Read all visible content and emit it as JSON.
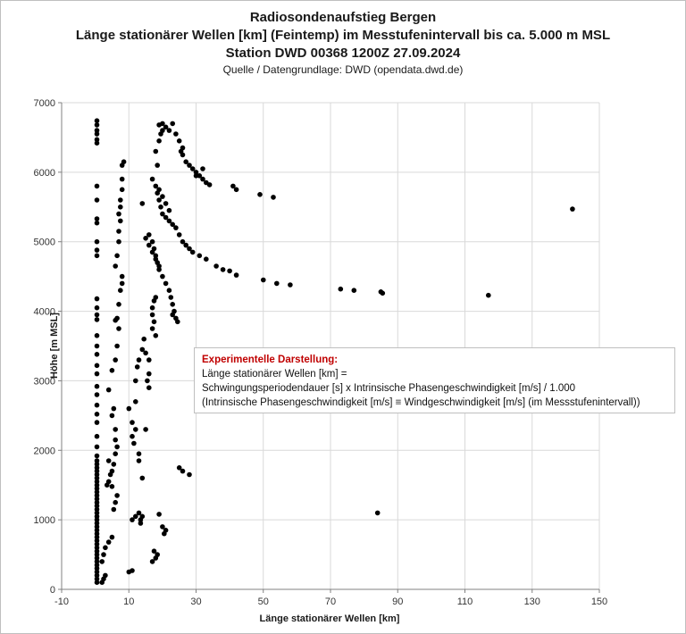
{
  "chart_data": {
    "type": "scatter",
    "title": "Radiosondenaufstieg Bergen",
    "subtitle_lines": [
      "Länge stationärer Wellen [km] (Feintemp) im Messtufenintervall bis ca. 5.000 m MSL",
      "Station DWD 00368 1200Z 27.09.2024"
    ],
    "source": "Quelle / Datengrundlage: DWD (opendata.dwd.de)",
    "xlabel": "Länge stationärer Wellen [km]",
    "ylabel": "Höhe [m MSL]",
    "xlim": [
      -10,
      150
    ],
    "ylim": [
      0,
      7000
    ],
    "xticks": [
      "-10",
      "10",
      "30",
      "50",
      "70",
      "90",
      "110",
      "130",
      "150"
    ],
    "yticks": [
      "0",
      "1000",
      "2000",
      "3000",
      "4000",
      "5000",
      "6000",
      "7000"
    ],
    "grid": true,
    "legend": false,
    "marker_color": "#000000",
    "annotation": {
      "title": "Experimentelle Darstellung:",
      "lines": [
        "Länge stationärer Wellen [km] =",
        "Schwingungsperiodendauer [s] x Intrinsische Phasengeschwindigkeit [m/s]  / 1.000",
        "(Intrinsische Phasengeschwindigkeit [m/s] ≡ Windgeschwindigkeit [m/s] (im Messstufenintervall))"
      ],
      "title_color": "#c00000"
    },
    "points": [
      [
        0.5,
        6740
      ],
      [
        0.5,
        6680
      ],
      [
        0.5,
        6600
      ],
      [
        0.5,
        6550
      ],
      [
        0.5,
        6470
      ],
      [
        0.5,
        6420
      ],
      [
        0.5,
        5800
      ],
      [
        0.5,
        5600
      ],
      [
        0.5,
        5330
      ],
      [
        0.5,
        5270
      ],
      [
        0.5,
        5000
      ],
      [
        0.5,
        4880
      ],
      [
        0.5,
        4800
      ],
      [
        0.5,
        4180
      ],
      [
        0.5,
        4050
      ],
      [
        0.5,
        3950
      ],
      [
        0.5,
        3880
      ],
      [
        0.5,
        3650
      ],
      [
        0.5,
        3500
      ],
      [
        0.5,
        3380
      ],
      [
        0.5,
        3220
      ],
      [
        0.5,
        3100
      ],
      [
        0.5,
        2920
      ],
      [
        0.5,
        2800
      ],
      [
        0.5,
        2650
      ],
      [
        0.5,
        2520
      ],
      [
        0.5,
        2400
      ],
      [
        0.5,
        2200
      ],
      [
        0.5,
        2050
      ],
      [
        0.5,
        1920
      ],
      [
        0.5,
        1850
      ],
      [
        0.5,
        1800
      ],
      [
        0.5,
        1750
      ],
      [
        0.5,
        1700
      ],
      [
        0.5,
        1650
      ],
      [
        0.5,
        1600
      ],
      [
        0.5,
        1550
      ],
      [
        0.5,
        1500
      ],
      [
        0.5,
        1450
      ],
      [
        0.5,
        1400
      ],
      [
        0.5,
        1350
      ],
      [
        0.5,
        1300
      ],
      [
        0.5,
        1250
      ],
      [
        0.5,
        1200
      ],
      [
        0.5,
        1150
      ],
      [
        0.5,
        1100
      ],
      [
        0.5,
        1050
      ],
      [
        0.5,
        1000
      ],
      [
        0.5,
        950
      ],
      [
        0.5,
        900
      ],
      [
        0.5,
        850
      ],
      [
        0.5,
        800
      ],
      [
        0.5,
        750
      ],
      [
        0.5,
        700
      ],
      [
        0.5,
        650
      ],
      [
        0.5,
        600
      ],
      [
        0.5,
        550
      ],
      [
        0.5,
        500
      ],
      [
        0.5,
        450
      ],
      [
        0.5,
        400
      ],
      [
        0.5,
        350
      ],
      [
        0.5,
        300
      ],
      [
        0.5,
        250
      ],
      [
        0.5,
        200
      ],
      [
        0.5,
        150
      ],
      [
        0.5,
        100
      ],
      [
        2,
        100
      ],
      [
        2.5,
        150
      ],
      [
        3,
        200
      ],
      [
        2,
        400
      ],
      [
        2.5,
        500
      ],
      [
        3,
        600
      ],
      [
        4,
        680
      ],
      [
        5,
        750
      ],
      [
        3.5,
        1500
      ],
      [
        4,
        1550
      ],
      [
        5,
        1480
      ],
      [
        4.5,
        1650
      ],
      [
        5,
        1700
      ],
      [
        5.5,
        1800
      ],
      [
        4,
        1850
      ],
      [
        5.5,
        1150
      ],
      [
        6,
        1250
      ],
      [
        6.5,
        1350
      ],
      [
        6,
        1950
      ],
      [
        6.5,
        2050
      ],
      [
        6,
        2150
      ],
      [
        6,
        2300
      ],
      [
        5,
        2500
      ],
      [
        5.5,
        2600
      ],
      [
        4,
        2870
      ],
      [
        5,
        3150
      ],
      [
        6,
        3300
      ],
      [
        6.5,
        3500
      ],
      [
        7,
        3750
      ],
      [
        6,
        3870
      ],
      [
        6.5,
        3900
      ],
      [
        7,
        4100
      ],
      [
        7.5,
        4300
      ],
      [
        8,
        4400
      ],
      [
        8,
        4500
      ],
      [
        6,
        4650
      ],
      [
        6.5,
        4800
      ],
      [
        7,
        5000
      ],
      [
        7,
        5150
      ],
      [
        7.5,
        5300
      ],
      [
        7,
        5400
      ],
      [
        7.5,
        5500
      ],
      [
        7.5,
        5600
      ],
      [
        8,
        5750
      ],
      [
        8,
        5900
      ],
      [
        8,
        6100
      ],
      [
        8.5,
        6150
      ],
      [
        10,
        250
      ],
      [
        11,
        270
      ],
      [
        11,
        1000
      ],
      [
        12,
        1050
      ],
      [
        13,
        1100
      ],
      [
        14,
        1050
      ],
      [
        13.5,
        950
      ],
      [
        17,
        400
      ],
      [
        18,
        450
      ],
      [
        18.5,
        500
      ],
      [
        17.5,
        550
      ],
      [
        19,
        1080
      ],
      [
        20,
        900
      ],
      [
        20.5,
        800
      ],
      [
        21,
        850
      ],
      [
        10,
        2600
      ],
      [
        11,
        2400
      ],
      [
        12,
        2300
      ],
      [
        12,
        2700
      ],
      [
        12,
        3000
      ],
      [
        12.5,
        3200
      ],
      [
        13,
        3300
      ],
      [
        11,
        2200
      ],
      [
        11.5,
        2100
      ],
      [
        13,
        1950
      ],
      [
        13,
        1850
      ],
      [
        14,
        1600
      ],
      [
        13.5,
        1000
      ],
      [
        15,
        2300
      ],
      [
        14,
        3450
      ],
      [
        14.5,
        3600
      ],
      [
        15,
        3400
      ],
      [
        16,
        3300
      ],
      [
        16,
        3100
      ],
      [
        15.5,
        3000
      ],
      [
        16,
        2900
      ],
      [
        17,
        3750
      ],
      [
        17.5,
        3850
      ],
      [
        18,
        3650
      ],
      [
        17,
        4050
      ],
      [
        17.5,
        4150
      ],
      [
        18,
        4200
      ],
      [
        17,
        3950
      ],
      [
        16,
        5100
      ],
      [
        17,
        5000
      ],
      [
        17.5,
        4900
      ],
      [
        18,
        4800
      ],
      [
        18.5,
        4700
      ],
      [
        19,
        4600
      ],
      [
        20,
        4500
      ],
      [
        21,
        4400
      ],
      [
        22,
        4300
      ],
      [
        22.5,
        4200
      ],
      [
        23,
        4100
      ],
      [
        23.5,
        4000
      ],
      [
        24,
        3900
      ],
      [
        24.5,
        3850
      ],
      [
        23,
        3950
      ],
      [
        14,
        5550
      ],
      [
        17,
        5900
      ],
      [
        18,
        5800
      ],
      [
        18.5,
        5700
      ],
      [
        19,
        5600
      ],
      [
        19.5,
        5500
      ],
      [
        20,
        5400
      ],
      [
        21,
        5350
      ],
      [
        22,
        5300
      ],
      [
        23,
        5250
      ],
      [
        24,
        5200
      ],
      [
        25,
        5100
      ],
      [
        26,
        5000
      ],
      [
        27,
        4950
      ],
      [
        28,
        4900
      ],
      [
        29,
        4850
      ],
      [
        31,
        4800
      ],
      [
        33,
        4750
      ],
      [
        36,
        4650
      ],
      [
        38,
        4600
      ],
      [
        40,
        4580
      ],
      [
        42,
        4520
      ],
      [
        50,
        4450
      ],
      [
        54,
        4400
      ],
      [
        58,
        4380
      ],
      [
        73,
        4320
      ],
      [
        77,
        4300
      ],
      [
        85,
        4280
      ],
      [
        85.5,
        4260
      ],
      [
        117,
        4230
      ],
      [
        142,
        5470
      ],
      [
        18,
        6300
      ],
      [
        18.5,
        6100
      ],
      [
        19,
        6450
      ],
      [
        19.5,
        6550
      ],
      [
        20,
        6700
      ],
      [
        19,
        6680
      ],
      [
        20,
        6600
      ],
      [
        21,
        6650
      ],
      [
        23,
        6700
      ],
      [
        22,
        6600
      ],
      [
        24,
        6550
      ],
      [
        25,
        6450
      ],
      [
        26,
        6350
      ],
      [
        25.5,
        6300
      ],
      [
        26,
        6250
      ],
      [
        27,
        6150
      ],
      [
        28,
        6100
      ],
      [
        29,
        6050
      ],
      [
        30,
        6000
      ],
      [
        31,
        5950
      ],
      [
        32,
        5900
      ],
      [
        33,
        5850
      ],
      [
        34,
        5820
      ],
      [
        42,
        5750
      ],
      [
        41,
        5800
      ],
      [
        49,
        5680
      ],
      [
        53,
        5640
      ],
      [
        32,
        6050
      ],
      [
        30,
        5950
      ],
      [
        19,
        5750
      ],
      [
        20,
        5650
      ],
      [
        21,
        5550
      ],
      [
        22,
        5450
      ],
      [
        15,
        5050
      ],
      [
        16,
        4950
      ],
      [
        17,
        4850
      ],
      [
        18,
        4750
      ],
      [
        19,
        4650
      ],
      [
        25,
        1750
      ],
      [
        26,
        1700
      ],
      [
        28,
        1650
      ],
      [
        84,
        1100
      ]
    ]
  }
}
